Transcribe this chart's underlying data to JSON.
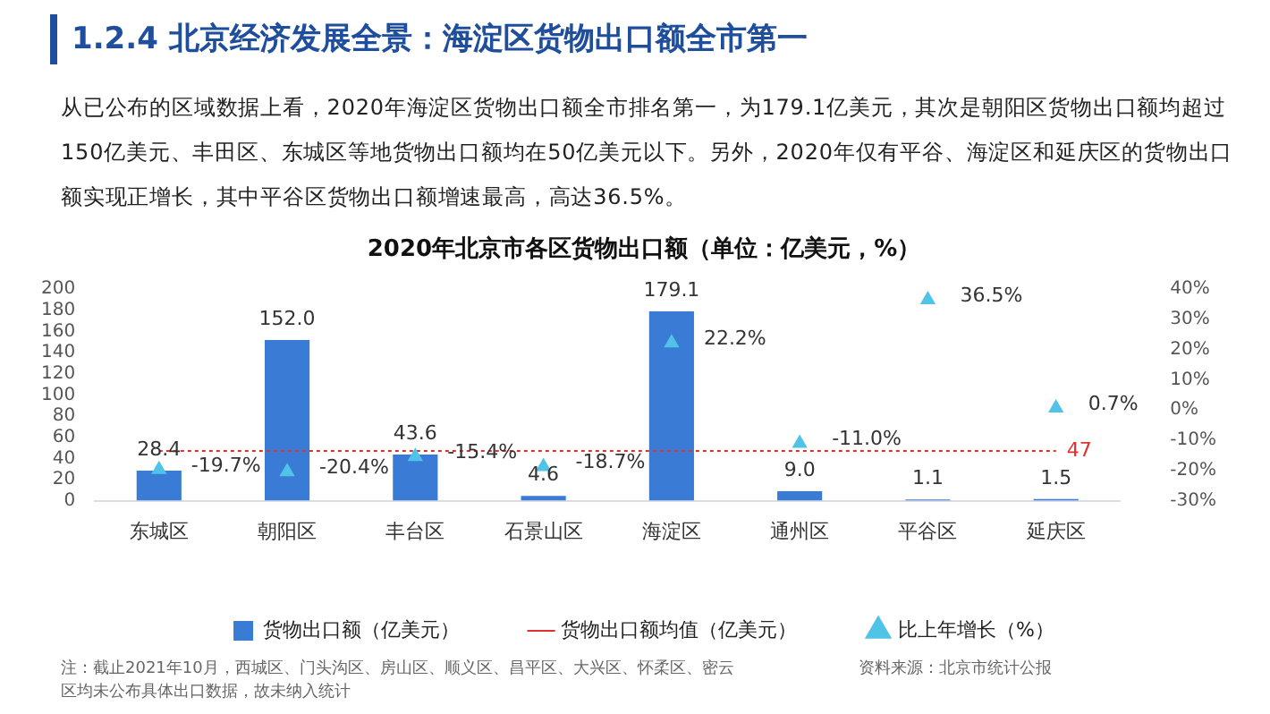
{
  "chart_data": {
    "type": "bar",
    "title": "2020年北京市各区货物出口额（单位：亿美元，%）",
    "categories": [
      "东城区",
      "朝阳区",
      "丰台区",
      "石景山区",
      "海淀区",
      "通州区",
      "平谷区",
      "延庆区"
    ],
    "series": [
      {
        "name": "货物出口额（亿美元）",
        "color": "#3a7bd5",
        "values": [
          28.4,
          152.0,
          43.6,
          4.6,
          179.1,
          9.0,
          1.1,
          1.5
        ],
        "value_labels": [
          "28.4",
          "152.0",
          "43.6",
          "4.6",
          "179.1",
          "9.0",
          "1.1",
          "1.5"
        ]
      },
      {
        "name": "货物出口额均值（亿美元）",
        "type": "line",
        "color": "#e0302f",
        "line_style": "dotted",
        "marker": "none",
        "values": [
          47,
          47,
          47,
          47,
          47,
          47,
          47,
          47
        ],
        "value_labels": [
          null,
          null,
          null,
          null,
          null,
          null,
          null,
          "47"
        ]
      },
      {
        "name": "比上年增长（%）",
        "type": "scatter",
        "axis": "y2",
        "color": "#4fc3e8",
        "marker": "triangle",
        "values": [
          -19.7,
          -20.4,
          -15.4,
          -18.7,
          22.2,
          -11.0,
          36.5,
          0.7
        ],
        "value_labels": [
          "-19.7%",
          "-20.4%",
          "-15.4%",
          "-18.7%",
          "22.2%",
          "-11.0%",
          "36.5%",
          "0.7%"
        ]
      }
    ],
    "ylim": [
      0,
      200
    ],
    "yticks": [
      0,
      20,
      40,
      60,
      80,
      100,
      120,
      140,
      160,
      180,
      200
    ],
    "y2lim": [
      -30,
      40
    ],
    "y2ticks": [
      {
        "value": -30,
        "label": "-30%"
      },
      {
        "value": -20,
        "label": "-20%"
      },
      {
        "value": -10,
        "label": "-10%"
      },
      {
        "value": 0,
        "label": "0%"
      },
      {
        "value": 10,
        "label": "10%"
      },
      {
        "value": 20,
        "label": "20%"
      },
      {
        "value": 30,
        "label": "30%"
      },
      {
        "value": 40,
        "label": "40%"
      }
    ],
    "grid": false,
    "legend": "bottom",
    "annotations": [
      "1.2.4  北京经济发展全景：海淀区货物出口额全市第一",
      "从已公布的区域数据上看，2020年海淀区货物出口额全市排名第一，为179.1亿美元，其次是朝阳区货物出口额均超过150亿美元、丰田区、东城区等地货物出口额均在50亿美元以下。另外，2020年仅有平谷、海淀区和延庆区的货物出口额实现正增长，其中平谷区货物出口额增速最高，高达36.5%。",
      "注：截止2021年10月，西城区、门头沟区、房山区、顺义区、昌平区、大兴区、怀柔区、密云区均未公布具体出口数据，故未纳入统计",
      "资料来源：北京市统计公报"
    ]
  }
}
